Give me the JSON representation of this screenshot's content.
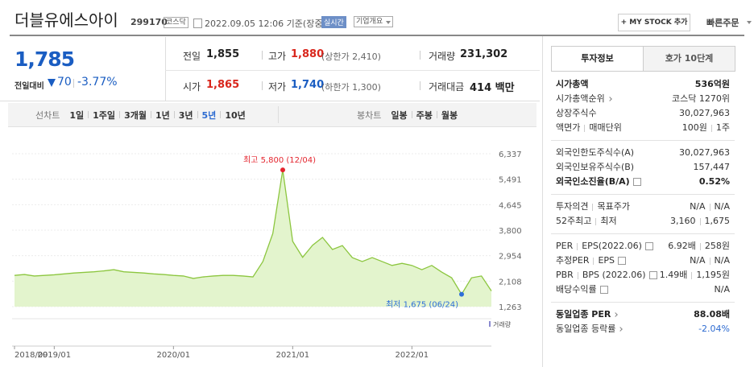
{
  "header": {
    "name": "더블유에스아이",
    "code": "299170",
    "market": "코스닥",
    "datetime": "2022.09.05 12:06 기준(장중)",
    "realtime": "실시간",
    "overview": "기업개요",
    "my_stock": "+ MY STOCK 추가",
    "quick_order": "빠른주문"
  },
  "price": {
    "current": "1,785",
    "change_label": "전일대비",
    "change": "70",
    "change_rate": "-3.77%"
  },
  "summary": {
    "prev_close": {
      "label": "전일",
      "value": "1,855"
    },
    "high": {
      "label": "고가",
      "value": "1,880",
      "note": "(상한가 2,410)"
    },
    "volume": {
      "label": "거래량",
      "value": "231,302"
    },
    "open": {
      "label": "시가",
      "value": "1,865"
    },
    "low": {
      "label": "저가",
      "value": "1,740",
      "note": "(하한가 1,300)"
    },
    "amount": {
      "label": "거래대금",
      "value": "414 백만"
    }
  },
  "chart_tabs": {
    "line_label": "선차트",
    "line_periods": [
      {
        "label": "1일"
      },
      {
        "label": "1주일"
      },
      {
        "label": "3개월"
      },
      {
        "label": "1년"
      },
      {
        "label": "3년"
      },
      {
        "label": "5년",
        "active": true
      },
      {
        "label": "10년"
      }
    ],
    "candle_label": "봉차트",
    "candle_periods": [
      {
        "label": "일봉"
      },
      {
        "label": "주봉"
      },
      {
        "label": "월봉"
      }
    ]
  },
  "chart": {
    "type": "line",
    "x": [
      "2018/09",
      "2018/10",
      "2018/11",
      "2018/12",
      "2019/01",
      "2019/02",
      "2019/03",
      "2019/04",
      "2019/05",
      "2019/06",
      "2019/07",
      "2019/08",
      "2019/09",
      "2019/10",
      "2019/11",
      "2019/12",
      "2020/01",
      "2020/02",
      "2020/03",
      "2020/04",
      "2020/05",
      "2020/06",
      "2020/07",
      "2020/08",
      "2020/09",
      "2020/10",
      "2020/11",
      "2020/12",
      "2021/01",
      "2021/02",
      "2021/03",
      "2021/04",
      "2021/05",
      "2021/06",
      "2021/07",
      "2021/08",
      "2021/09",
      "2021/10",
      "2021/11",
      "2021/12",
      "2022/01",
      "2022/02",
      "2022/03",
      "2022/04",
      "2022/05",
      "2022/06",
      "2022/07",
      "2022/08",
      "2022/09"
    ],
    "values": [
      2300,
      2330,
      2280,
      2300,
      2320,
      2350,
      2380,
      2400,
      2420,
      2450,
      2490,
      2420,
      2400,
      2380,
      2350,
      2330,
      2300,
      2280,
      2200,
      2250,
      2280,
      2300,
      2300,
      2280,
      2250,
      2760,
      3690,
      5800,
      3430,
      2900,
      3300,
      3560,
      3160,
      3290,
      2890,
      2760,
      2890,
      2760,
      2630,
      2700,
      2630,
      2490,
      2630,
      2410,
      2220,
      1675,
      2220,
      2280,
      1785
    ],
    "ylim": [
      1263,
      6337
    ],
    "yticks": [
      {
        "value": 1263,
        "label": "1,263"
      },
      {
        "value": 2108,
        "label": "2,108"
      },
      {
        "value": 2954,
        "label": "2,954"
      },
      {
        "value": 3800,
        "label": "3,800"
      },
      {
        "value": 4645,
        "label": "4,645"
      },
      {
        "value": 5491,
        "label": "5,491"
      },
      {
        "value": 6337,
        "label": "6,337"
      }
    ],
    "xticks": [
      "2018/09",
      "2019/01",
      "2020/01",
      "2021/01",
      "2022/01"
    ],
    "grid": true,
    "color": "#8cc63f",
    "fill": "#e3f4cd",
    "max_label": "최고 5,800 (12/04)",
    "max_color": "#e4262f",
    "min_label": "최저 1,675 (06/24)",
    "min_color": "#2e6fd8",
    "volume_label": "거래량"
  },
  "invest": {
    "tabs": [
      {
        "label": "투자정보",
        "active": true
      },
      {
        "label": "호가 10단계"
      }
    ],
    "groups": [
      {
        "rows": [
          {
            "label": "시가총액",
            "value": "536억원",
            "strong": true
          },
          {
            "label": "시가총액순위",
            "link": true,
            "value": "코스닥 1270위"
          },
          {
            "label": "상장주식수",
            "value": "30,027,963"
          },
          {
            "label": [
              "액면가",
              "매매단위"
            ],
            "value": [
              "100원",
              "1주"
            ]
          }
        ]
      },
      {
        "rows": [
          {
            "label": "외국인한도주식수(A)",
            "value": "30,027,963"
          },
          {
            "label": "외국인보유주식수(B)",
            "value": "157,447"
          },
          {
            "label": "외국인소진율(B/A)",
            "help": true,
            "value": "0.52%",
            "strong": true
          }
        ]
      },
      {
        "rows": [
          {
            "label": [
              "투자의견",
              "목표주가"
            ],
            "value": [
              "N/A",
              "N/A"
            ]
          },
          {
            "label": [
              "52주최고",
              "최저"
            ],
            "value": [
              "3,160",
              "1,675"
            ]
          }
        ]
      },
      {
        "rows": [
          {
            "label": [
              "PER",
              "EPS(2022.06)"
            ],
            "help": true,
            "value": [
              "6.92배",
              "258원"
            ]
          },
          {
            "label": [
              "추정PER",
              "EPS"
            ],
            "help": true,
            "value": [
              "N/A",
              "N/A"
            ]
          },
          {
            "label": [
              "PBR",
              "BPS (2022.06)"
            ],
            "help": true,
            "value": [
              "1.49배",
              "1,195원"
            ]
          },
          {
            "label": "배당수익률",
            "help": true,
            "value": "N/A"
          }
        ]
      },
      {
        "rows": [
          {
            "label": "동일업종 PER",
            "link": true,
            "value": "88.08배",
            "strong": true
          },
          {
            "label": "동일업종 등락률",
            "link": true,
            "value": "-2.04%",
            "down": true
          }
        ]
      }
    ]
  }
}
